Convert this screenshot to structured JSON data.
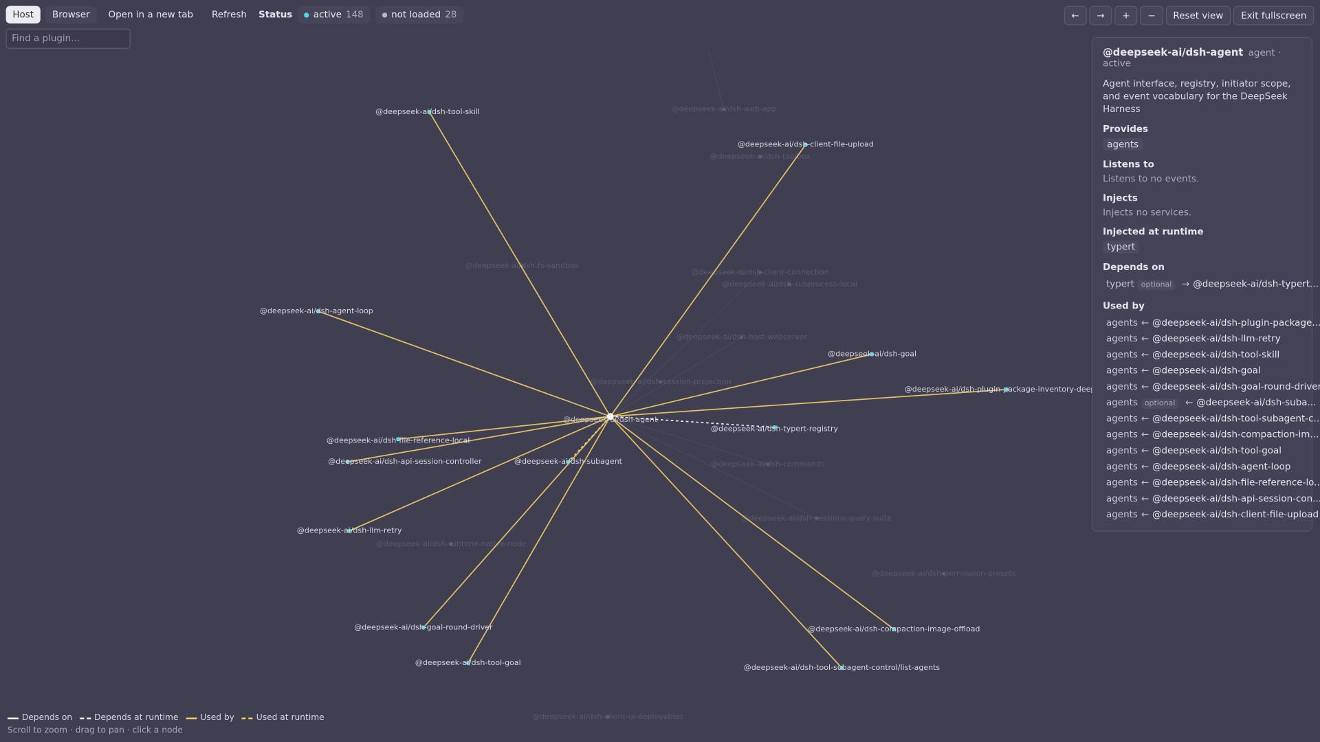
{
  "toolbar": {
    "tabs": [
      "Host",
      "Browser"
    ],
    "actions": [
      "Open in a new tab",
      "Refresh"
    ],
    "status_label": "Status",
    "active": {
      "label": "active",
      "count": "148"
    },
    "not_loaded": {
      "label": "not loaded",
      "count": "28"
    },
    "right_buttons": [
      "←",
      "→",
      "+",
      "−",
      "Reset view",
      "Exit fullscreen"
    ]
  },
  "search": {
    "placeholder": "Find a plugin..."
  },
  "graph": {
    "center": "@deepseek-ai/dsh-agent",
    "nodes": [
      {
        "label": "@deepseek-ai/dsh-tool-skill",
        "relation": "used_by"
      },
      {
        "label": "@deepseek-ai/dsh-client-file-upload",
        "relation": "used_by"
      },
      {
        "label": "@deepseek-ai/dsh-agent-loop",
        "relation": "used_by"
      },
      {
        "label": "@deepseek-ai/dsh-goal",
        "relation": "used_by"
      },
      {
        "label": "@deepseek-ai/dsh-plugin-package-inventory-deepse",
        "relation": "used_by"
      },
      {
        "label": "@deepseek-ai/dsh-typert-registry",
        "relation": "depends_at_runtime"
      },
      {
        "label": "@deepseek-ai/dsh-file-reference-local",
        "relation": "used_by"
      },
      {
        "label": "@deepseek-ai/dsh-api-session-controller",
        "relation": "used_by"
      },
      {
        "label": "@deepseek-ai/dsh-subagent",
        "relation": "used_at_runtime"
      },
      {
        "label": "@deepseek-ai/dsh-llm-retry",
        "relation": "used_by"
      },
      {
        "label": "@deepseek-ai/dsh-goal-round-driver",
        "relation": "used_by"
      },
      {
        "label": "@deepseek-ai/dsh-tool-goal",
        "relation": "used_by"
      },
      {
        "label": "@deepseek-ai/dsh-compaction-image-offload",
        "relation": "used_by"
      },
      {
        "label": "@deepseek-ai/dsh-tool-subagent-control/list-agents",
        "relation": "used_by"
      }
    ],
    "faded": [
      "@deepseek-ai/dsh-web-app",
      "@deepseek-ai/dsh-fs-sandbox",
      "@deepseek-ai/dsh-client-connection",
      "@deepseek-ai/dsh-subprocess-local",
      "@deepseek-ai/dsh-host-webserver",
      "@deepseek-ai/dsh-commands",
      "@deepseek-ai/dsh-sessions-query-suite",
      "@deepseek-ai/dsh-permission-presets",
      "@deepseek-ai/dsh-runtime-native-node",
      "@deepseek-ai/dsh-client-ui-deployables",
      "@deepseek-ai/dsh-toolbox",
      "@deepseek-ai/dsh-session-projection"
    ]
  },
  "panel": {
    "title": "@deepseek-ai/dsh-agent",
    "meta": "agent · active",
    "description": "Agent interface, registry, initiator scope, and event vocabulary for the DeepSeek Harness",
    "sections": [
      {
        "heading": "Provides",
        "chips": [
          "agents"
        ]
      },
      {
        "heading": "Listens to",
        "text": "Listens to no events."
      },
      {
        "heading": "Injects",
        "text": "Injects no services."
      },
      {
        "heading": "Injected at runtime",
        "chips": [
          "typert"
        ]
      },
      {
        "heading": "Depends on",
        "items": [
          {
            "name": "typert",
            "badge": "optional",
            "arrow": "→",
            "target": "@deepseek-ai/dsh-typert..."
          }
        ]
      },
      {
        "heading": "Used by",
        "items": [
          {
            "name": "agents",
            "arrow": "←",
            "target": "@deepseek-ai/dsh-plugin-package..."
          },
          {
            "name": "agents",
            "arrow": "←",
            "target": "@deepseek-ai/dsh-llm-retry"
          },
          {
            "name": "agents",
            "arrow": "←",
            "target": "@deepseek-ai/dsh-tool-skill"
          },
          {
            "name": "agents",
            "arrow": "←",
            "target": "@deepseek-ai/dsh-goal"
          },
          {
            "name": "agents",
            "arrow": "←",
            "target": "@deepseek-ai/dsh-goal-round-driver"
          },
          {
            "name": "agents",
            "badge": "optional",
            "arrow": "←",
            "target": "@deepseek-ai/dsh-suba..."
          },
          {
            "name": "agents",
            "arrow": "←",
            "target": "@deepseek-ai/dsh-tool-subagent-c..."
          },
          {
            "name": "agents",
            "arrow": "←",
            "target": "@deepseek-ai/dsh-compaction-im..."
          },
          {
            "name": "agents",
            "arrow": "←",
            "target": "@deepseek-ai/dsh-tool-goal"
          },
          {
            "name": "agents",
            "arrow": "←",
            "target": "@deepseek-ai/dsh-agent-loop"
          },
          {
            "name": "agents",
            "arrow": "←",
            "target": "@deepseek-ai/dsh-file-reference-lo..."
          },
          {
            "name": "agents",
            "arrow": "←",
            "target": "@deepseek-ai/dsh-api-session-con..."
          },
          {
            "name": "agents",
            "arrow": "←",
            "target": "@deepseek-ai/dsh-client-file-upload"
          }
        ]
      }
    ]
  },
  "legend": {
    "items": [
      {
        "label": "Depends on",
        "color": "#ffffff",
        "dashed": false
      },
      {
        "label": "Depends at runtime",
        "color": "#ffffff",
        "dashed": true
      },
      {
        "label": "Used by",
        "color": "#f2d065",
        "dashed": false
      },
      {
        "label": "Used at runtime",
        "color": "#f2d065",
        "dashed": true
      }
    ],
    "hint": "Scroll to zoom · drag to pan · click a node"
  }
}
